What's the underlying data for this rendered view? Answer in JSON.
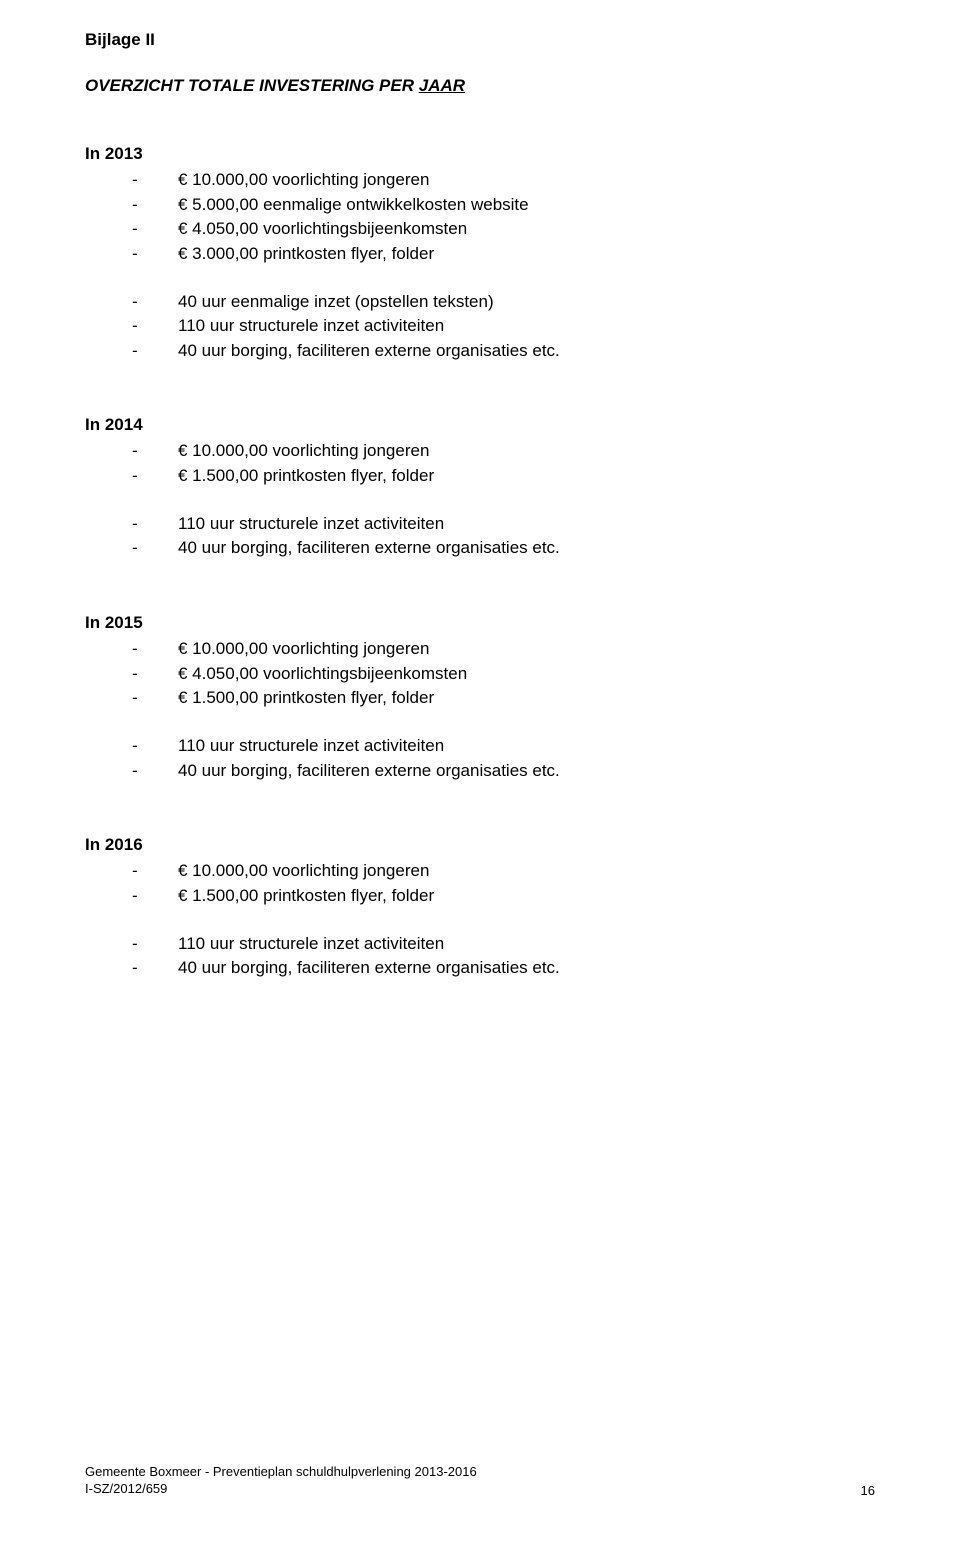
{
  "appendix_title": "Bijlage II",
  "subtitle_prefix": "OVERZICHT TOTALE INVESTERING PER ",
  "subtitle_underlined": "JAAR",
  "sections": [
    {
      "heading": "In 2013",
      "items_a": [
        "€ 10.000,00 voorlichting jongeren",
        "€ 5.000,00 eenmalige ontwikkelkosten website",
        "€ 4.050,00 voorlichtingsbijeenkomsten",
        "€ 3.000,00 printkosten flyer, folder"
      ],
      "items_b": [
        "40 uur eenmalige inzet (opstellen teksten)",
        "110 uur structurele inzet activiteiten",
        "40 uur borging, faciliteren externe organisaties etc."
      ]
    },
    {
      "heading": "In 2014",
      "items_a": [
        "€ 10.000,00 voorlichting jongeren",
        "€ 1.500,00 printkosten flyer, folder"
      ],
      "items_b": [
        "110 uur structurele inzet activiteiten",
        "40 uur borging, faciliteren externe organisaties etc."
      ]
    },
    {
      "heading": "In 2015",
      "items_a": [
        "€ 10.000,00 voorlichting jongeren",
        "€ 4.050,00 voorlichtingsbijeenkomsten",
        "€ 1.500,00 printkosten flyer, folder"
      ],
      "items_b": [
        "110 uur structurele inzet activiteiten",
        "40 uur borging, faciliteren externe organisaties etc."
      ]
    },
    {
      "heading": "In 2016",
      "items_a": [
        "€ 10.000,00 voorlichting jongeren",
        "€ 1.500,00 printkosten flyer, folder"
      ],
      "items_b": [
        "110 uur structurele inzet activiteiten",
        "40 uur borging, faciliteren externe organisaties etc."
      ]
    }
  ],
  "footer": {
    "line1": "Gemeente Boxmeer - Preventieplan schuldhulpverlening 2013-2016",
    "line2": "I-SZ/2012/659",
    "page_number": "16"
  }
}
